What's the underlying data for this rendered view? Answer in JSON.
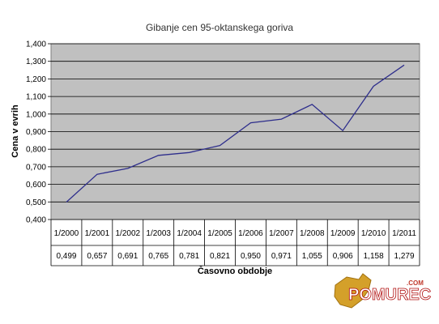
{
  "chart_data": {
    "type": "line",
    "title": "Gibanje cen 95-oktanskega goriva",
    "xlabel": "Časovno obdobje",
    "ylabel": "Cena v evrih",
    "categories": [
      "1/2000",
      "1/2001",
      "1/2002",
      "1/2003",
      "1/2004",
      "1/2005",
      "1/2006",
      "1/2007",
      "1/2008",
      "1/2009",
      "1/2010",
      "1/2011"
    ],
    "values": [
      0.499,
      0.657,
      0.691,
      0.765,
      0.781,
      0.821,
      0.95,
      0.971,
      1.055,
      0.906,
      1.158,
      1.279
    ],
    "value_labels": [
      "0,499",
      "0,657",
      "0,691",
      "0,765",
      "0,781",
      "0,821",
      "0,950",
      "0,971",
      "1,055",
      "0,906",
      "1,158",
      "1,279"
    ],
    "y_ticks": [
      0.4,
      0.5,
      0.6,
      0.7,
      0.8,
      0.9,
      1.0,
      1.1,
      1.2,
      1.3,
      1.4
    ],
    "y_tick_labels": [
      "0,400",
      "0,500",
      "0,600",
      "0,700",
      "0,800",
      "0,900",
      "1,000",
      "1,100",
      "1,200",
      "1,300",
      "1,400"
    ],
    "ylim": [
      0.4,
      1.4
    ],
    "grid": true,
    "legend": "none",
    "data_table": true,
    "colors": {
      "plot_bg": "#c0c0c0",
      "line": "#2e2e8c",
      "grid": "#000000"
    }
  },
  "logo": {
    "text": "POMUREC",
    "suffix": ".COM",
    "colors": {
      "shape": "#d4a02a",
      "text_stroke": "#b01010"
    }
  }
}
